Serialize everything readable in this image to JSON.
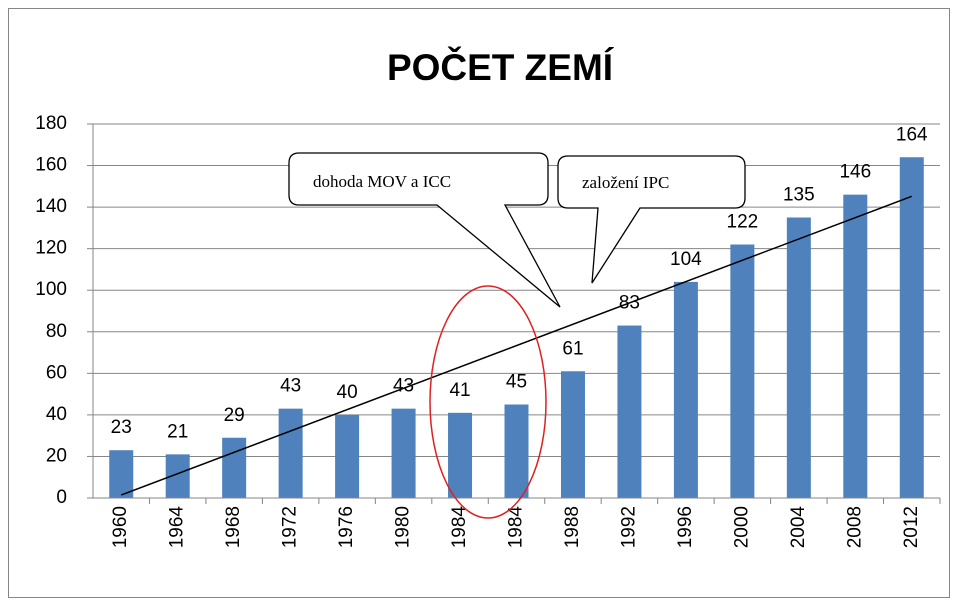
{
  "chart_data": {
    "type": "bar",
    "title": "POČET ZEMÍ",
    "categories": [
      "1960",
      "1964",
      "1968",
      "1972",
      "1976",
      "1980",
      "1984",
      "1984",
      "1988",
      "1992",
      "1996",
      "2000",
      "2004",
      "2008",
      "2012"
    ],
    "values": [
      23,
      21,
      29,
      43,
      40,
      43,
      41,
      45,
      61,
      83,
      104,
      122,
      135,
      146,
      164
    ],
    "color": "#4f81bd",
    "ylim": [
      0,
      180
    ],
    "yticks": [
      0,
      20,
      40,
      60,
      80,
      100,
      120,
      140,
      160,
      180
    ],
    "grid": true,
    "trendline": "linear",
    "data_labels": true,
    "annotations": [
      "dohoda MOV a ICC",
      "založení IPC"
    ]
  }
}
